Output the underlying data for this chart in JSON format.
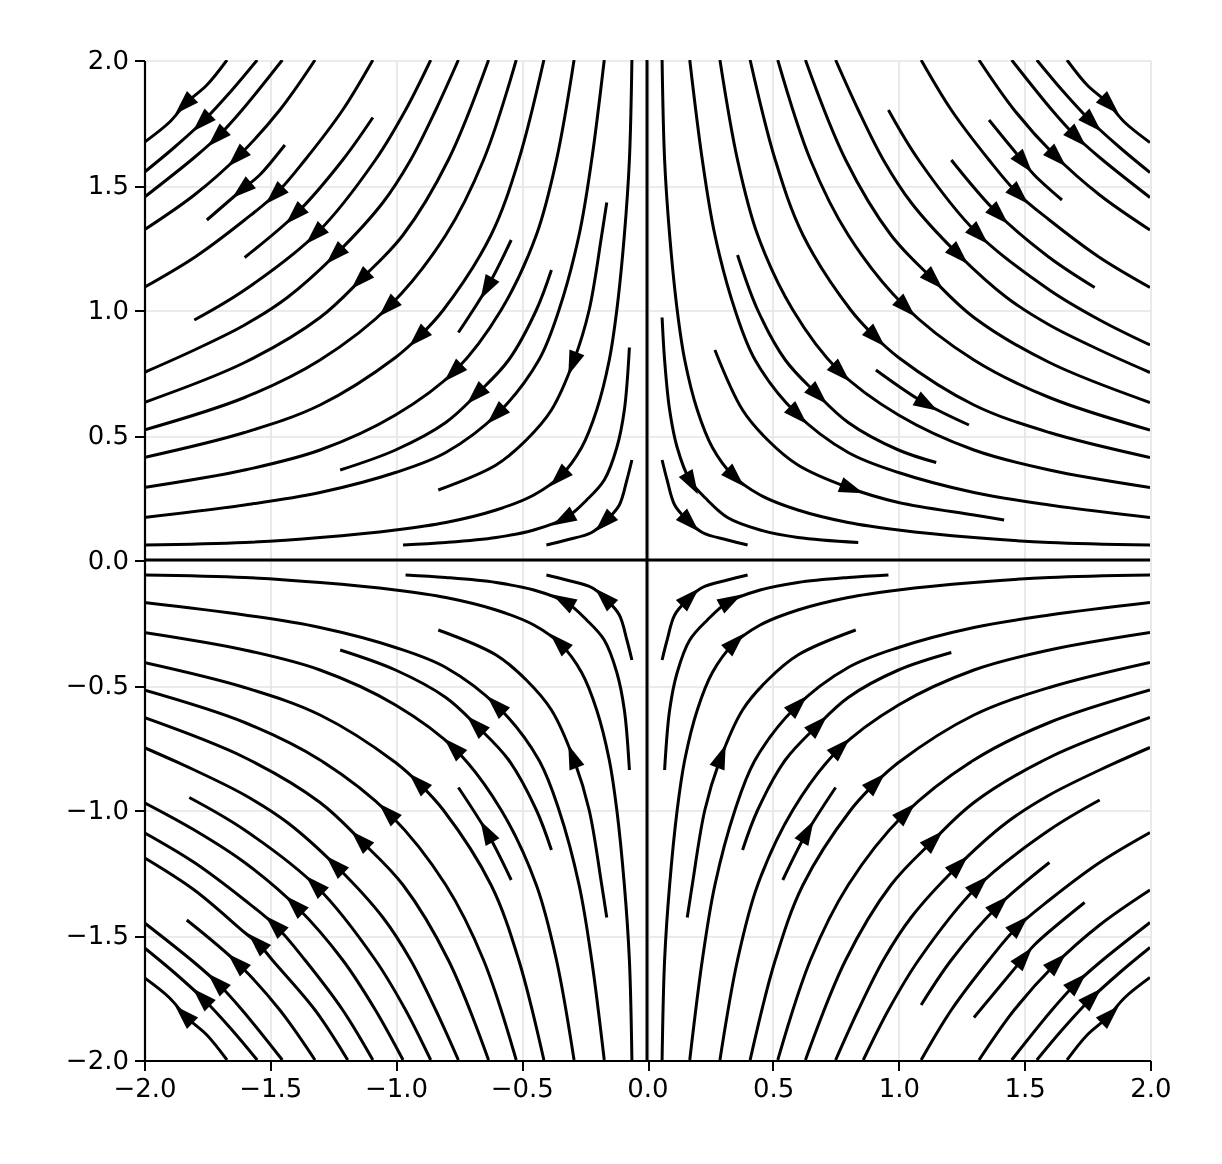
{
  "chart_data": {
    "type": "line",
    "xlim": [
      -2,
      2
    ],
    "ylim": [
      -2,
      2
    ],
    "xticks": [
      {
        "value": -2,
        "label": "−2.0"
      },
      {
        "value": -1.5,
        "label": "−1.5"
      },
      {
        "value": -1,
        "label": "−1.0"
      },
      {
        "value": -0.5,
        "label": "−0.5"
      },
      {
        "value": 0,
        "label": "0.0"
      },
      0.5,
      {
        "value": 1,
        "label": "1.0"
      },
      1.5,
      {
        "value": 2,
        "label": "2.0"
      }
    ],
    "yticks": [
      {
        "value": -2,
        "label": "−2.0"
      },
      {
        "value": -1.5,
        "label": "−1.5"
      },
      {
        "value": -1,
        "label": "−1.0"
      },
      {
        "value": -0.5,
        "label": "−0.5"
      },
      {
        "value": 0,
        "label": "0.0"
      },
      0.5,
      {
        "value": 1,
        "label": "1.0"
      },
      1.5,
      {
        "value": 2,
        "label": "2.0"
      }
    ],
    "grid": true,
    "series": [
      {
        "color": "#000000",
        "x": [
          0.06,
          0.08,
          0.11,
          0.16,
          0.22,
          0.32,
          0.4
        ],
        "values": [
          0.4,
          0.32,
          0.22,
          0.16,
          0.11,
          0.08,
          0.06
        ]
      },
      {
        "color": "#000000",
        "x": [
          0.06,
          0.07,
          0.09,
          0.12,
          0.17,
          0.24,
          0.32,
          0.45,
          0.6,
          0.84
        ],
        "values": [
          0.97,
          0.8,
          0.6,
          0.45,
          0.32,
          0.24,
          0.17,
          0.12,
          0.09,
          0.07
        ]
      },
      {
        "color": "#000000",
        "x": [
          0.06,
          0.07,
          0.09,
          0.12,
          0.15,
          0.2,
          0.26,
          0.34,
          0.45,
          0.6,
          0.8,
          1,
          1.3,
          1.6,
          2
        ],
        "values": [
          2,
          1.6,
          1.3,
          1,
          0.8,
          0.6,
          0.45,
          0.34,
          0.26,
          0.2,
          0.15,
          0.12,
          0.09,
          0.07,
          0.06
        ]
      },
      {
        "color": "#000000",
        "x": [
          0.27,
          0.38,
          0.48,
          0.6,
          0.8,
          1,
          1.3,
          1.42
        ],
        "values": [
          0.84,
          0.6,
          0.48,
          0.38,
          0.29,
          0.23,
          0.18,
          0.16
        ]
      },
      {
        "color": "#000000",
        "x": [
          0.17,
          0.22,
          0.27,
          0.35,
          0.43,
          0.59,
          0.8,
          1,
          1.3,
          1.6,
          2
        ],
        "values": [
          2,
          1.6,
          1.3,
          1,
          0.8,
          0.59,
          0.43,
          0.35,
          0.27,
          0.22,
          0.17
        ]
      },
      {
        "color": "#000000",
        "x": [
          0.36,
          0.44,
          0.55,
          0.67,
          0.8,
          1,
          1.15
        ],
        "values": [
          1.22,
          1,
          0.8,
          0.67,
          0.55,
          0.44,
          0.39
        ]
      },
      {
        "color": "#000000",
        "x": [
          0.29,
          0.36,
          0.44,
          0.58,
          0.76,
          1,
          1.3,
          1.6,
          2
        ],
        "values": [
          2,
          1.6,
          1.3,
          1,
          0.76,
          0.58,
          0.44,
          0.36,
          0.29
        ]
      },
      {
        "color": "#000000",
        "x": [
          0.91,
          1.1,
          1.28
        ],
        "values": [
          0.76,
          0.63,
          0.54
        ]
      },
      {
        "color": "#000000",
        "x": [
          0.41,
          0.51,
          0.62,
          0.81,
          0.9,
          1,
          1.3,
          1.6,
          2
        ],
        "values": [
          2,
          1.6,
          1.3,
          1,
          0.9,
          0.81,
          0.62,
          0.51,
          0.41
        ]
      },
      {
        "color": "#000000",
        "x": [
          0.52,
          0.65,
          0.8,
          1.02,
          1.3,
          1.6,
          2
        ],
        "values": [
          2,
          1.6,
          1.3,
          1.02,
          0.8,
          0.65,
          0.52
        ]
      },
      {
        "color": "#000000",
        "x": [
          0.63,
          0.79,
          0.97,
          1.13,
          1.3,
          1.6,
          2
        ],
        "values": [
          2,
          1.6,
          1.3,
          1.13,
          0.97,
          0.79,
          0.63
        ]
      },
      {
        "color": "#000000",
        "x": [
          0.75,
          0.84,
          0.94,
          1.05,
          1.23,
          1.43,
          1.6,
          1.8,
          2
        ],
        "values": [
          2,
          1.8,
          1.6,
          1.43,
          1.23,
          1.05,
          0.94,
          0.84,
          0.75
        ]
      },
      {
        "color": "#000000",
        "x": [
          0.96,
          1.08,
          1.31,
          1.6,
          1.8,
          2
        ],
        "values": [
          1.8,
          1.6,
          1.31,
          1.08,
          0.96,
          0.86
        ]
      },
      {
        "color": "#000000",
        "x": [
          1.21,
          1.39,
          1.6,
          1.78
        ],
        "values": [
          1.6,
          1.39,
          1.21,
          1.09
        ]
      },
      {
        "color": "#000000",
        "x": [
          1.09,
          1.21,
          1.36,
          1.47,
          1.6,
          1.8,
          2
        ],
        "values": [
          2,
          1.8,
          1.6,
          1.47,
          1.36,
          1.21,
          1.09
        ]
      },
      {
        "color": "#000000",
        "x": [
          1.36,
          1.49,
          1.54,
          1.65
        ],
        "values": [
          1.76,
          1.6,
          1.54,
          1.44
        ]
      },
      {
        "color": "#000000",
        "x": [
          1.32,
          1.46,
          1.62,
          1.8,
          2
        ],
        "values": [
          2,
          1.8,
          1.62,
          1.46,
          1.32
        ]
      },
      {
        "color": "#000000",
        "x": [
          1.45,
          1.61,
          1.7,
          1.8,
          2
        ],
        "values": [
          2,
          1.8,
          1.7,
          1.61,
          1.45
        ]
      },
      {
        "color": "#000000",
        "x": [
          1.55,
          1.65,
          1.76,
          1.88,
          2
        ],
        "values": [
          2,
          1.88,
          1.76,
          1.65,
          1.55
        ]
      },
      {
        "color": "#000000",
        "x": [
          1.67,
          1.75,
          1.83,
          1.9,
          2
        ],
        "values": [
          2,
          1.9,
          1.83,
          1.75,
          1.67
        ]
      },
      {
        "color": "#000000",
        "x": [
          -0.06,
          -0.08,
          -0.11,
          -0.16,
          -0.22,
          -0.32,
          -0.4
        ],
        "values": [
          0.4,
          0.32,
          0.22,
          0.16,
          0.11,
          0.08,
          0.06
        ]
      },
      {
        "color": "#000000",
        "x": [
          -0.07,
          -0.09,
          -0.12,
          -0.17,
          -0.24,
          -0.32,
          -0.45,
          -0.6,
          -0.8,
          -0.97
        ],
        "values": [
          0.85,
          0.6,
          0.45,
          0.32,
          0.24,
          0.17,
          0.12,
          0.09,
          0.07,
          0.06
        ]
      },
      {
        "color": "#000000",
        "x": [
          -0.06,
          -0.07,
          -0.09,
          -0.12,
          -0.15,
          -0.2,
          -0.26,
          -0.34,
          -0.45,
          -0.6,
          -0.8,
          -1,
          -1.3,
          -1.6,
          -2
        ],
        "values": [
          2,
          1.6,
          1.3,
          1,
          0.8,
          0.6,
          0.45,
          0.34,
          0.26,
          0.2,
          0.15,
          0.12,
          0.09,
          0.07,
          0.06
        ]
      },
      {
        "color": "#000000",
        "x": [
          -0.16,
          -0.18,
          -0.23,
          -0.29,
          -0.38,
          -0.48,
          -0.6,
          -0.83
        ],
        "values": [
          1.43,
          1.3,
          1,
          0.8,
          0.6,
          0.48,
          0.38,
          0.28
        ]
      },
      {
        "color": "#000000",
        "x": [
          -0.17,
          -0.22,
          -0.27,
          -0.35,
          -0.43,
          -0.59,
          -0.8,
          -1,
          -1.3,
          -1.6,
          -2
        ],
        "values": [
          2,
          1.6,
          1.3,
          1,
          0.8,
          0.59,
          0.43,
          0.35,
          0.27,
          0.22,
          0.17
        ]
      },
      {
        "color": "#000000",
        "x": [
          -0.38,
          -0.44,
          -0.55,
          -0.67,
          -0.8,
          -1,
          -1.22
        ],
        "values": [
          1.16,
          1,
          0.8,
          0.67,
          0.55,
          0.44,
          0.36
        ]
      },
      {
        "color": "#000000",
        "x": [
          -0.29,
          -0.36,
          -0.44,
          -0.58,
          -0.76,
          -1,
          -1.3,
          -1.6,
          -2
        ],
        "values": [
          2,
          1.6,
          1.3,
          1,
          0.76,
          0.58,
          0.44,
          0.36,
          0.29
        ]
      },
      {
        "color": "#000000",
        "x": [
          -0.54,
          -0.63,
          -0.75
        ],
        "values": [
          1.28,
          1.1,
          0.91
        ]
      },
      {
        "color": "#000000",
        "x": [
          -0.41,
          -0.51,
          -0.62,
          -0.81,
          -0.9,
          -1,
          -1.3,
          -1.6,
          -2
        ],
        "values": [
          2,
          1.6,
          1.3,
          1,
          0.9,
          0.81,
          0.62,
          0.51,
          0.41
        ]
      },
      {
        "color": "#000000",
        "x": [
          -0.52,
          -0.65,
          -0.8,
          -1.02,
          -1.3,
          -1.6,
          -2
        ],
        "values": [
          2,
          1.6,
          1.3,
          1.02,
          0.8,
          0.65,
          0.52
        ]
      },
      {
        "color": "#000000",
        "x": [
          -0.63,
          -0.79,
          -0.97,
          -1.13,
          -1.3,
          -1.6,
          -2
        ],
        "values": [
          2,
          1.6,
          1.3,
          1.13,
          0.97,
          0.79,
          0.63
        ]
      },
      {
        "color": "#000000",
        "x": [
          -0.75,
          -0.84,
          -0.94,
          -1.05,
          -1.23,
          -1.43,
          -1.6,
          -1.8,
          -2
        ],
        "values": [
          2,
          1.8,
          1.6,
          1.43,
          1.23,
          1.05,
          0.94,
          0.84,
          0.75
        ]
      },
      {
        "color": "#000000",
        "x": [
          -0.86,
          -0.96,
          -1.08,
          -1.31,
          -1.6,
          -1.8
        ],
        "values": [
          2,
          1.8,
          1.6,
          1.31,
          1.08,
          0.96
        ]
      },
      {
        "color": "#000000",
        "x": [
          -1.09,
          -1.21,
          -1.39,
          -1.6
        ],
        "values": [
          1.77,
          1.6,
          1.39,
          1.21
        ]
      },
      {
        "color": "#000000",
        "x": [
          -1.09,
          -1.21,
          -1.36,
          -1.47,
          -1.6,
          -1.8,
          -2
        ],
        "values": [
          2,
          1.8,
          1.6,
          1.47,
          1.36,
          1.21,
          1.09
        ]
      },
      {
        "color": "#000000",
        "x": [
          -1.44,
          -1.54,
          -1.6,
          -1.75
        ],
        "values": [
          1.66,
          1.54,
          1.49,
          1.36
        ]
      },
      {
        "color": "#000000",
        "x": [
          -1.32,
          -1.46,
          -1.62,
          -1.8,
          -2
        ],
        "values": [
          2,
          1.8,
          1.62,
          1.46,
          1.32
        ]
      },
      {
        "color": "#000000",
        "x": [
          -1.45,
          -1.61,
          -1.7,
          -1.8,
          -2
        ],
        "values": [
          2,
          1.8,
          1.7,
          1.61,
          1.45
        ]
      },
      {
        "color": "#000000",
        "x": [
          -1.55,
          -1.65,
          -1.76,
          -1.88,
          -2
        ],
        "values": [
          2,
          1.88,
          1.76,
          1.65,
          1.55
        ]
      },
      {
        "color": "#000000",
        "x": [
          -1.67,
          -1.75,
          -1.83,
          -1.9,
          -2
        ],
        "values": [
          2,
          1.9,
          1.83,
          1.75,
          1.67
        ]
      },
      {
        "color": "#000000",
        "x": [
          -0.06,
          -0.08,
          -0.11,
          -0.16,
          -0.22,
          -0.32,
          -0.4
        ],
        "values": [
          -0.4,
          -0.32,
          -0.22,
          -0.16,
          -0.11,
          -0.08,
          -0.06
        ]
      },
      {
        "color": "#000000",
        "x": [
          -0.07,
          -0.09,
          -0.12,
          -0.17,
          -0.24,
          -0.32,
          -0.45,
          -0.6,
          -0.8,
          -0.96
        ],
        "values": [
          -0.84,
          -0.6,
          -0.45,
          -0.32,
          -0.24,
          -0.17,
          -0.12,
          -0.09,
          -0.07,
          -0.06
        ]
      },
      {
        "color": "#000000",
        "x": [
          -0.06,
          -0.07,
          -0.09,
          -0.12,
          -0.15,
          -0.2,
          -0.26,
          -0.34,
          -0.45,
          -0.6,
          -0.8,
          -1,
          -1.3,
          -1.6,
          -2
        ],
        "values": [
          -2,
          -1.6,
          -1.3,
          -1,
          -0.8,
          -0.6,
          -0.45,
          -0.34,
          -0.26,
          -0.2,
          -0.15,
          -0.12,
          -0.09,
          -0.07,
          -0.06
        ]
      },
      {
        "color": "#000000",
        "x": [
          -0.16,
          -0.18,
          -0.23,
          -0.29,
          -0.38,
          -0.48,
          -0.6,
          -0.83
        ],
        "values": [
          -1.43,
          -1.3,
          -1,
          -0.8,
          -0.6,
          -0.48,
          -0.38,
          -0.28
        ]
      },
      {
        "color": "#000000",
        "x": [
          -0.17,
          -0.22,
          -0.27,
          -0.35,
          -0.43,
          -0.59,
          -0.8,
          -1,
          -1.3,
          -1.6,
          -2
        ],
        "values": [
          -2,
          -1.6,
          -1.3,
          -1,
          -0.8,
          -0.59,
          -0.43,
          -0.35,
          -0.27,
          -0.22,
          -0.17
        ]
      },
      {
        "color": "#000000",
        "x": [
          -0.38,
          -0.44,
          -0.55,
          -0.67,
          -0.8,
          -1,
          -1.22
        ],
        "values": [
          -1.16,
          -1,
          -0.8,
          -0.67,
          -0.55,
          -0.44,
          -0.36
        ]
      },
      {
        "color": "#000000",
        "x": [
          -0.29,
          -0.36,
          -0.44,
          -0.58,
          -0.76,
          -1,
          -1.3,
          -1.6,
          -2
        ],
        "values": [
          -2,
          -1.6,
          -1.3,
          -1,
          -0.76,
          -0.58,
          -0.44,
          -0.36,
          -0.29
        ]
      },
      {
        "color": "#000000",
        "x": [
          -0.54,
          -0.63,
          -0.75
        ],
        "values": [
          -1.28,
          -1.1,
          -0.91
        ]
      },
      {
        "color": "#000000",
        "x": [
          -0.41,
          -0.51,
          -0.62,
          -0.81,
          -0.9,
          -1,
          -1.3,
          -1.6,
          -2
        ],
        "values": [
          -2,
          -1.6,
          -1.3,
          -1,
          -0.9,
          -0.81,
          -0.62,
          -0.51,
          -0.41
        ]
      },
      {
        "color": "#000000",
        "x": [
          -0.52,
          -0.65,
          -0.8,
          -1.02,
          -1.3,
          -1.6,
          -2
        ],
        "values": [
          -2,
          -1.6,
          -1.3,
          -1.02,
          -0.8,
          -0.65,
          -0.52
        ]
      },
      {
        "color": "#000000",
        "x": [
          -0.63,
          -0.79,
          -0.97,
          -1.13,
          -1.3,
          -1.6,
          -2
        ],
        "values": [
          -2,
          -1.6,
          -1.3,
          -1.13,
          -0.97,
          -0.79,
          -0.63
        ]
      },
      {
        "color": "#000000",
        "x": [
          -0.75,
          -0.84,
          -0.94,
          -1.05,
          -1.23,
          -1.43,
          -1.6,
          -1.8,
          -2
        ],
        "values": [
          -2,
          -1.8,
          -1.6,
          -1.43,
          -1.23,
          -1.05,
          -0.94,
          -0.84,
          -0.75
        ]
      },
      {
        "color": "#000000",
        "x": [
          -0.86,
          -0.96,
          -1.08,
          -1.31,
          -1.6,
          -1.82
        ],
        "values": [
          -2,
          -1.8,
          -1.6,
          -1.31,
          -1.08,
          -0.95
        ]
      },
      {
        "color": "#000000",
        "x": [
          -0.97,
          -1.08,
          -1.21,
          -1.39,
          -1.6,
          -1.8,
          -2
        ],
        "values": [
          -2,
          -1.8,
          -1.6,
          -1.39,
          -1.21,
          -1.08,
          -0.97
        ]
      },
      {
        "color": "#000000",
        "x": [
          -1.09,
          -1.21,
          -1.36,
          -1.47,
          -1.6,
          -1.8,
          -2
        ],
        "values": [
          -2,
          -1.8,
          -1.6,
          -1.47,
          -1.36,
          -1.21,
          -1.09
        ]
      },
      {
        "color": "#000000",
        "x": [
          -1.19,
          -1.32,
          -1.49,
          -1.54,
          -1.6,
          -1.8,
          -2
        ],
        "values": [
          -2,
          -1.8,
          -1.6,
          -1.54,
          -1.49,
          -1.32,
          -1.19
        ]
      },
      {
        "color": "#000000",
        "x": [
          -1.32,
          -1.46,
          -1.62,
          -1.83
        ],
        "values": [
          -2,
          -1.8,
          -1.62,
          -1.44
        ]
      },
      {
        "color": "#000000",
        "x": [
          -1.45,
          -1.61,
          -1.7,
          -1.8,
          -2
        ],
        "values": [
          -2,
          -1.8,
          -1.7,
          -1.61,
          -1.45
        ]
      },
      {
        "color": "#000000",
        "x": [
          -1.55,
          -1.65,
          -1.76,
          -1.88,
          -2
        ],
        "values": [
          -2,
          -1.88,
          -1.76,
          -1.65,
          -1.55
        ]
      },
      {
        "color": "#000000",
        "x": [
          -1.67,
          -1.75,
          -1.83,
          -1.9,
          -2
        ],
        "values": [
          -2,
          -1.9,
          -1.83,
          -1.75,
          -1.67
        ]
      },
      {
        "color": "#000000",
        "x": [
          0.06,
          0.08,
          0.11,
          0.16,
          0.22,
          0.32,
          0.4
        ],
        "values": [
          -0.4,
          -0.32,
          -0.22,
          -0.16,
          -0.11,
          -0.08,
          -0.06
        ]
      },
      {
        "color": "#000000",
        "x": [
          0.07,
          0.09,
          0.12,
          0.17,
          0.24,
          0.32,
          0.45,
          0.6,
          0.8,
          0.96
        ],
        "values": [
          -0.84,
          -0.6,
          -0.45,
          -0.32,
          -0.24,
          -0.17,
          -0.12,
          -0.09,
          -0.07,
          -0.06
        ]
      },
      {
        "color": "#000000",
        "x": [
          0.06,
          0.07,
          0.09,
          0.12,
          0.15,
          0.2,
          0.26,
          0.34,
          0.45,
          0.6,
          0.8,
          1,
          1.3,
          1.6,
          2
        ],
        "values": [
          -2,
          -1.6,
          -1.3,
          -1,
          -0.8,
          -0.6,
          -0.45,
          -0.34,
          -0.26,
          -0.2,
          -0.15,
          -0.12,
          -0.09,
          -0.07,
          -0.06
        ]
      },
      {
        "color": "#000000",
        "x": [
          0.16,
          0.18,
          0.23,
          0.29,
          0.38,
          0.48,
          0.6,
          0.83
        ],
        "values": [
          -1.43,
          -1.3,
          -1,
          -0.8,
          -0.6,
          -0.48,
          -0.38,
          -0.28
        ]
      },
      {
        "color": "#000000",
        "x": [
          0.17,
          0.22,
          0.27,
          0.35,
          0.43,
          0.59,
          0.8,
          1,
          1.3,
          1.6,
          2
        ],
        "values": [
          -2,
          -1.6,
          -1.3,
          -1,
          -0.8,
          -0.59,
          -0.43,
          -0.35,
          -0.27,
          -0.22,
          -0.17
        ]
      },
      {
        "color": "#000000",
        "x": [
          0.38,
          0.44,
          0.55,
          0.67,
          0.8,
          1,
          1.21
        ],
        "values": [
          -1.16,
          -1,
          -0.8,
          -0.67,
          -0.55,
          -0.44,
          -0.37
        ]
      },
      {
        "color": "#000000",
        "x": [
          0.29,
          0.36,
          0.44,
          0.58,
          0.76,
          1,
          1.3,
          1.6,
          2
        ],
        "values": [
          -2,
          -1.6,
          -1.3,
          -1,
          -0.76,
          -0.58,
          -0.44,
          -0.36,
          -0.29
        ]
      },
      {
        "color": "#000000",
        "x": [
          0.54,
          0.63,
          0.75
        ],
        "values": [
          -1.28,
          -1.1,
          -0.91
        ]
      },
      {
        "color": "#000000",
        "x": [
          0.41,
          0.51,
          0.62,
          0.81,
          0.9,
          1,
          1.3,
          1.6,
          2
        ],
        "values": [
          -2,
          -1.6,
          -1.3,
          -1,
          -0.9,
          -0.81,
          -0.62,
          -0.51,
          -0.41
        ]
      },
      {
        "color": "#000000",
        "x": [
          0.52,
          0.65,
          0.8,
          1.02,
          1.3,
          1.6,
          2
        ],
        "values": [
          -2,
          -1.6,
          -1.3,
          -1.02,
          -0.8,
          -0.65,
          -0.52
        ]
      },
      {
        "color": "#000000",
        "x": [
          0.63,
          0.79,
          0.97,
          1.13,
          1.3,
          1.6,
          2
        ],
        "values": [
          -2,
          -1.6,
          -1.3,
          -1.13,
          -0.97,
          -0.79,
          -0.63
        ]
      },
      {
        "color": "#000000",
        "x": [
          0.75,
          0.84,
          0.94,
          1.05,
          1.23,
          1.43,
          1.6,
          1.8,
          2
        ],
        "values": [
          -2,
          -1.8,
          -1.6,
          -1.43,
          -1.23,
          -1.05,
          -0.94,
          -0.84,
          -0.75
        ]
      },
      {
        "color": "#000000",
        "x": [
          0.86,
          0.96,
          1.08,
          1.31,
          1.6,
          1.8
        ],
        "values": [
          -2,
          -1.8,
          -1.6,
          -1.31,
          -1.08,
          -0.96
        ]
      },
      {
        "color": "#000000",
        "x": [
          1.09,
          1.21,
          1.39,
          1.6
        ],
        "values": [
          -1.78,
          -1.6,
          -1.39,
          -1.21
        ]
      },
      {
        "color": "#000000",
        "x": [
          1.09,
          1.21,
          1.36,
          1.47,
          1.6,
          1.8,
          2
        ],
        "values": [
          -2,
          -1.8,
          -1.6,
          -1.47,
          -1.36,
          -1.21,
          -1.09
        ]
      },
      {
        "color": "#000000",
        "x": [
          1.3,
          1.49,
          1.54,
          1.74
        ],
        "values": [
          -1.83,
          -1.6,
          -1.54,
          -1.37
        ]
      },
      {
        "color": "#000000",
        "x": [
          1.32,
          1.46,
          1.62,
          1.8,
          2
        ],
        "values": [
          -2,
          -1.8,
          -1.62,
          -1.46,
          -1.32
        ]
      },
      {
        "color": "#000000",
        "x": [
          1.45,
          1.61,
          1.7,
          1.8,
          2
        ],
        "values": [
          -2,
          -1.8,
          -1.7,
          -1.61,
          -1.45
        ]
      },
      {
        "color": "#000000",
        "x": [
          1.55,
          1.65,
          1.76,
          1.88,
          2
        ],
        "values": [
          -2,
          -1.88,
          -1.76,
          -1.65,
          -1.55
        ]
      },
      {
        "color": "#000000",
        "x": [
          1.67,
          1.75,
          1.83,
          1.9,
          2
        ],
        "values": [
          -2,
          -1.9,
          -1.83,
          -1.75,
          -1.67
        ]
      },
      {
        "color": "#000000",
        "x": [
          0,
          0
        ],
        "values": [
          2,
          -2
        ]
      },
      {
        "color": "#000000",
        "x": [
          -2,
          2
        ],
        "values": [
          0,
          0
        ]
      }
    ]
  }
}
